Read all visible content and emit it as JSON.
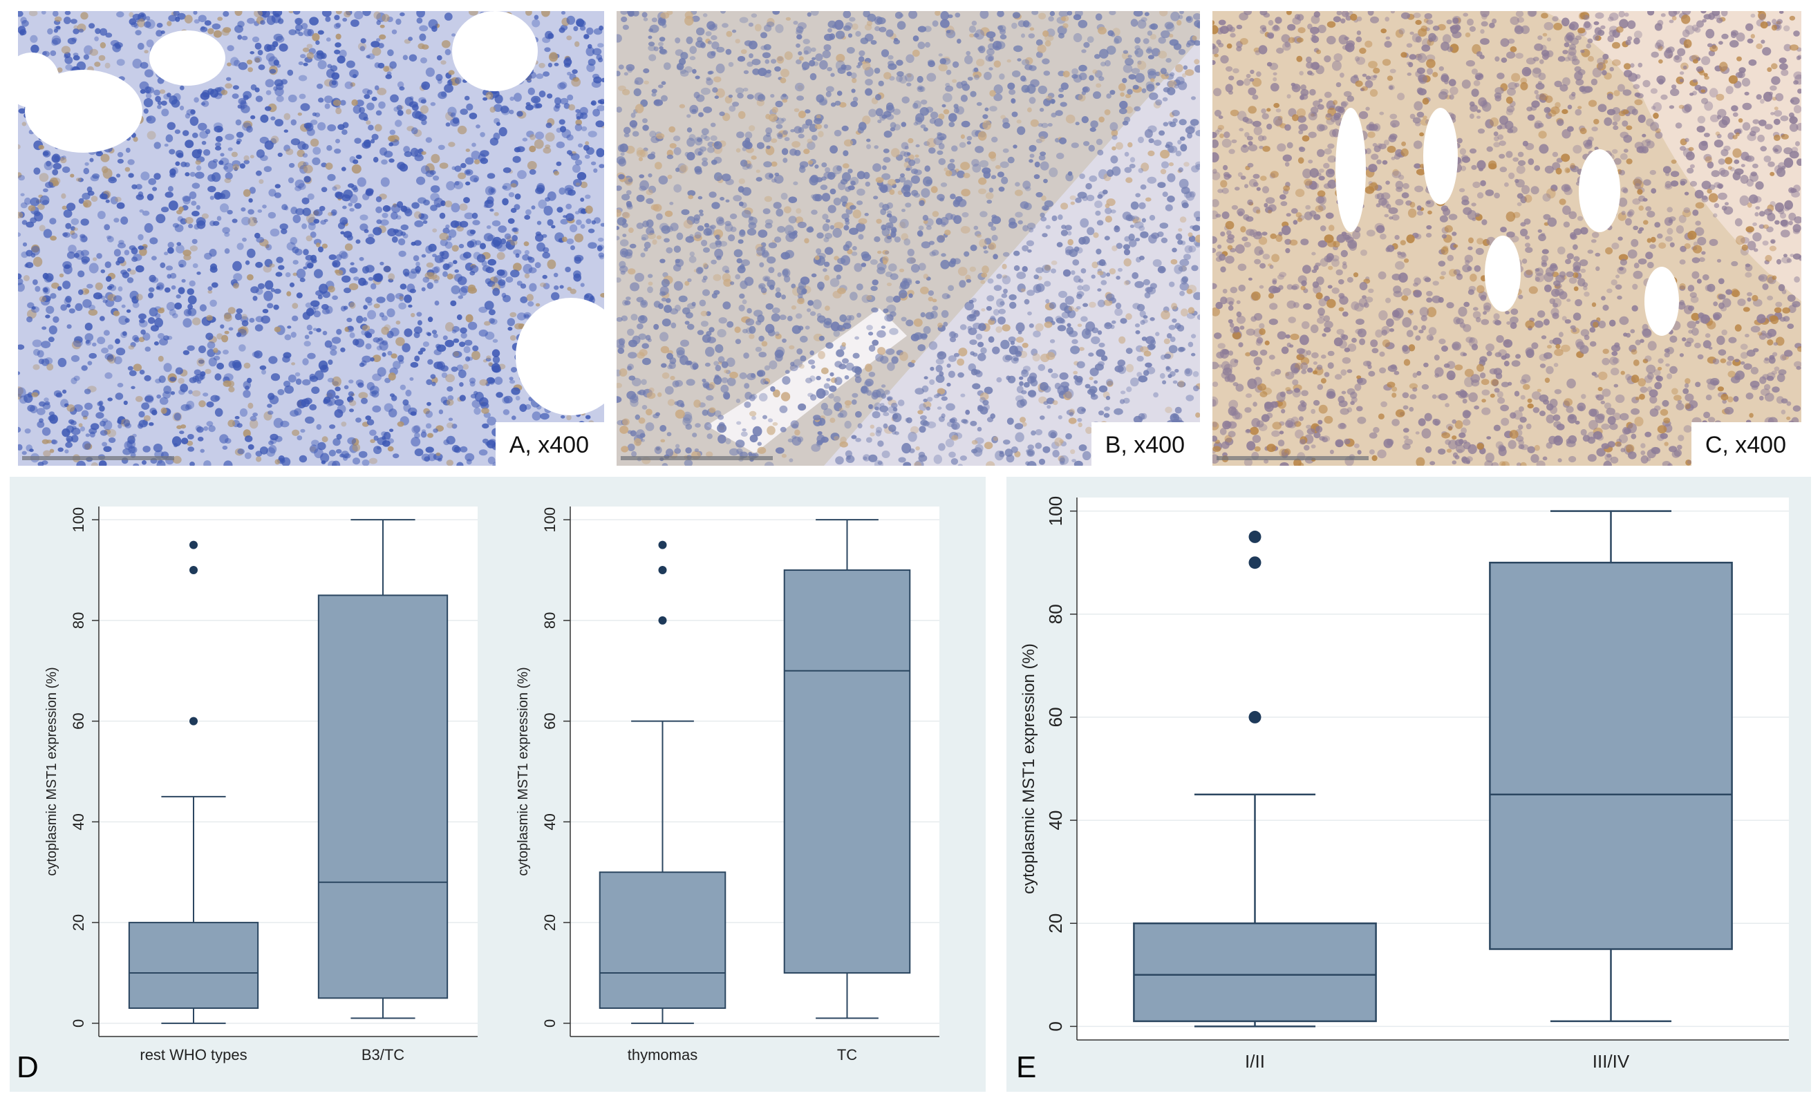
{
  "micrographs": [
    {
      "id": "A",
      "label": "A, x400",
      "stain_colors": {
        "background": "#c7cde8",
        "nuclei": "#3d58b4",
        "brown": "#b0946f"
      }
    },
    {
      "id": "B",
      "label": "B, x400",
      "stain_colors": {
        "background": "#d2cbc6",
        "nuclei": "#6f7bb0",
        "brown": "#c9a982"
      }
    },
    {
      "id": "C",
      "label": "C, x400",
      "stain_colors": {
        "background": "#e3cfb5",
        "nuclei": "#8d7c98",
        "brown": "#b88445"
      }
    }
  ],
  "panel_labels": {
    "D": "D",
    "E": "E"
  },
  "colors": {
    "panel_bg": "#e8f0f2",
    "plot_bg": "#ffffff",
    "box_fill": "#8ba2b8",
    "box_stroke": "#2b4660",
    "outlier": "#1e3a5a",
    "grid": "#e6ebee"
  },
  "chart_data": [
    {
      "type": "box",
      "ylabel": "cytoplasmic MST1 expression (%)",
      "ylim": [
        0,
        100
      ],
      "yticks": [
        0,
        20,
        40,
        60,
        80,
        100
      ],
      "grid": true,
      "categories": [
        "rest WHO types",
        "B3/TC"
      ],
      "boxes": [
        {
          "min": 0,
          "q1": 3,
          "median": 10,
          "q3": 20,
          "max": 45,
          "outliers": [
            60,
            90,
            95
          ]
        },
        {
          "min": 1,
          "q1": 5,
          "median": 28,
          "q3": 85,
          "max": 100,
          "outliers": []
        }
      ]
    },
    {
      "type": "box",
      "ylabel": "cytoplasmic MST1 expression (%)",
      "ylim": [
        0,
        100
      ],
      "yticks": [
        0,
        20,
        40,
        60,
        80,
        100
      ],
      "grid": true,
      "categories": [
        "thymomas",
        "TC"
      ],
      "boxes": [
        {
          "min": 0,
          "q1": 3,
          "median": 10,
          "q3": 30,
          "max": 60,
          "outliers": [
            80,
            90,
            95
          ]
        },
        {
          "min": 1,
          "q1": 10,
          "median": 70,
          "q3": 90,
          "max": 100,
          "outliers": []
        }
      ]
    },
    {
      "type": "box",
      "ylabel": "cytoplasmic MST1 expression (%)",
      "ylim": [
        0,
        100
      ],
      "yticks": [
        0,
        20,
        40,
        60,
        80,
        100
      ],
      "grid": true,
      "categories": [
        "I/II",
        "III/IV"
      ],
      "boxes": [
        {
          "min": 0,
          "q1": 1,
          "median": 10,
          "q3": 20,
          "max": 45,
          "outliers": [
            60,
            90,
            95
          ]
        },
        {
          "min": 1,
          "q1": 15,
          "median": 45,
          "q3": 90,
          "max": 100,
          "outliers": []
        }
      ]
    }
  ]
}
